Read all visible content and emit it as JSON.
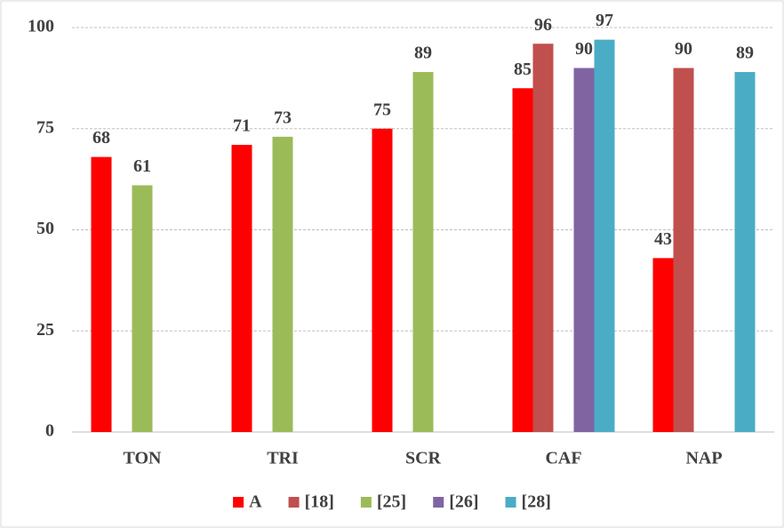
{
  "chart_data": {
    "type": "bar",
    "categories": [
      "TON",
      "TRI",
      "SCR",
      "CAF",
      "NAP"
    ],
    "series": [
      {
        "name": "A",
        "color": "#ff0000",
        "values": [
          68,
          71,
          75,
          85,
          43
        ]
      },
      {
        "name": "[18]",
        "color": "#c0504d",
        "values": [
          null,
          null,
          null,
          96,
          90
        ]
      },
      {
        "name": "[25]",
        "color": "#9bbb59",
        "values": [
          61,
          73,
          89,
          null,
          null
        ]
      },
      {
        "name": "[26]",
        "color": "#8064a2",
        "values": [
          null,
          null,
          null,
          90,
          null
        ]
      },
      {
        "name": "[28]",
        "color": "#4bacc6",
        "values": [
          null,
          null,
          null,
          97,
          89
        ]
      }
    ],
    "ylim": [
      0,
      100
    ],
    "yticks": [
      0,
      25,
      50,
      75,
      100
    ],
    "grid": true,
    "legend": "bottom"
  }
}
